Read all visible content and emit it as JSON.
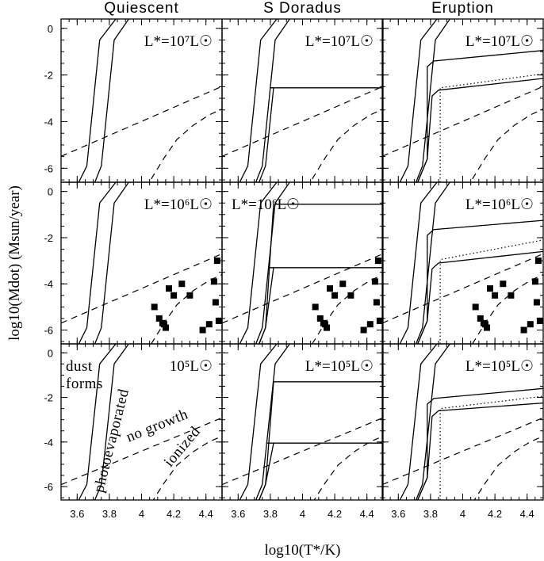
{
  "chart_data": {
    "type": "line",
    "layout": "3x3 grid of panels (rows: luminosity, columns: phase)",
    "column_titles": [
      "Quiescent",
      "S Doradus",
      "Eruption"
    ],
    "xlabel": "log10(T*/K)",
    "ylabel": "log10(Mdot)  (Msun/year)",
    "xlim": [
      3.5,
      4.5
    ],
    "ylim": [
      -6.6,
      0.4
    ],
    "xticks": [
      3.6,
      3.8,
      4.0,
      4.2,
      4.4
    ],
    "xtick_labels": [
      "3.6",
      "3.8",
      "4",
      "4.2",
      "4.4"
    ],
    "yticks": [
      0,
      -2,
      -4,
      -6
    ],
    "ytick_labels": [
      "0",
      "-2",
      "-4",
      "-6"
    ],
    "row_luminosity_labels": [
      "L*=10⁷L☉",
      "L*=10⁶L☉",
      "L*=10⁵L☉"
    ],
    "special_labels": {
      "bottom_left": "10⁵L☉",
      "middle_center": "L*=10⁶L☉"
    },
    "annotations": [
      "dust forms",
      "photoevaporated",
      "no growth",
      "ionized"
    ],
    "row_shift": [
      0.35,
      0,
      -0.35
    ],
    "boundaries": {
      "photoevap_left": {
        "x": [
          3.61,
          3.66,
          3.7,
          3.74,
          3.84
        ],
        "y": [
          -6.6,
          -5.9,
          -3.2,
          -0.5,
          0.4
        ]
      },
      "photoevap_right": {
        "x": [
          3.71,
          3.75,
          3.79,
          3.83,
          3.92
        ],
        "y": [
          -6.6,
          -5.9,
          -3.2,
          -0.5,
          0.4
        ]
      },
      "no_growth": {
        "x": [
          3.5,
          3.8,
          4.0,
          4.2,
          4.5
        ],
        "y": [
          -5.7,
          -4.8,
          -4.2,
          -3.6,
          -2.7
        ]
      },
      "ionized": {
        "x": [
          4.06,
          4.14,
          4.22,
          4.32,
          4.42,
          4.5
        ],
        "y": [
          -6.6,
          -5.7,
          -4.9,
          -4.3,
          -3.85,
          -3.6
        ]
      }
    },
    "sdor_plateaus": [
      {
        "row": 0,
        "levels": [
          -2.55
        ]
      },
      {
        "row": 1,
        "levels": [
          -0.55,
          -3.3
        ]
      },
      {
        "row": 2,
        "levels": [
          -1.3,
          -4.05
        ]
      }
    ],
    "eruption_curves": [
      {
        "row": 0,
        "upper": [
          -1.4,
          -0.95
        ],
        "lower": [
          -2.65,
          -2.15
        ],
        "dotted": [
          -2.55,
          -1.95
        ]
      },
      {
        "row": 1,
        "upper": [
          -1.65,
          -1.25
        ],
        "lower": [
          -3.1,
          -2.6
        ],
        "dotted": [
          -2.95,
          -2.1
        ]
      },
      {
        "row": 2,
        "upper": [
          -2.05,
          -1.6
        ],
        "lower": [
          -2.6,
          -2.25
        ],
        "dotted": [
          -2.5,
          -1.95
        ]
      }
    ],
    "eruption_dotted_x": 3.86,
    "stars": {
      "x": [
        4.08,
        4.11,
        4.13,
        4.15,
        4.14,
        4.17,
        4.2,
        4.25,
        4.3,
        4.38,
        4.42,
        4.45,
        4.46,
        4.47,
        4.48,
        4.49
      ],
      "y": [
        -5.0,
        -5.5,
        -5.7,
        -5.9,
        -5.75,
        -4.2,
        -4.5,
        -4.0,
        -4.5,
        -6.0,
        -5.75,
        -3.9,
        -4.8,
        -3.0,
        -5.6,
        -5.6
      ],
      "panels": [
        "row1-col0",
        "row1-col1",
        "row1-col2"
      ]
    }
  }
}
